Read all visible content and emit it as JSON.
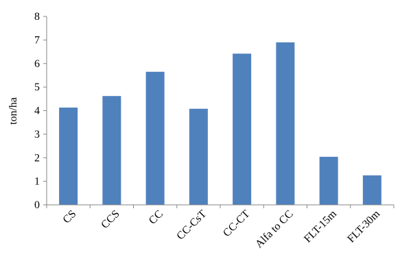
{
  "chart_data": {
    "type": "bar",
    "title": "",
    "xlabel": "",
    "ylabel": "ton/ha",
    "categories": [
      "CS",
      "CCS",
      "CC",
      "CC-CsT",
      "CC-CT",
      "Alfa to CC",
      "FLT-15m",
      "FLT-30m"
    ],
    "values": [
      4.13,
      4.62,
      5.65,
      4.08,
      6.42,
      6.9,
      2.04,
      1.25
    ],
    "ylim": [
      0,
      8
    ],
    "yticks": [
      0,
      1,
      2,
      3,
      4,
      5,
      6,
      7,
      8
    ],
    "grid": false,
    "legend": "none",
    "bar_color": "#4f81bd",
    "axis_color": "#868686"
  }
}
